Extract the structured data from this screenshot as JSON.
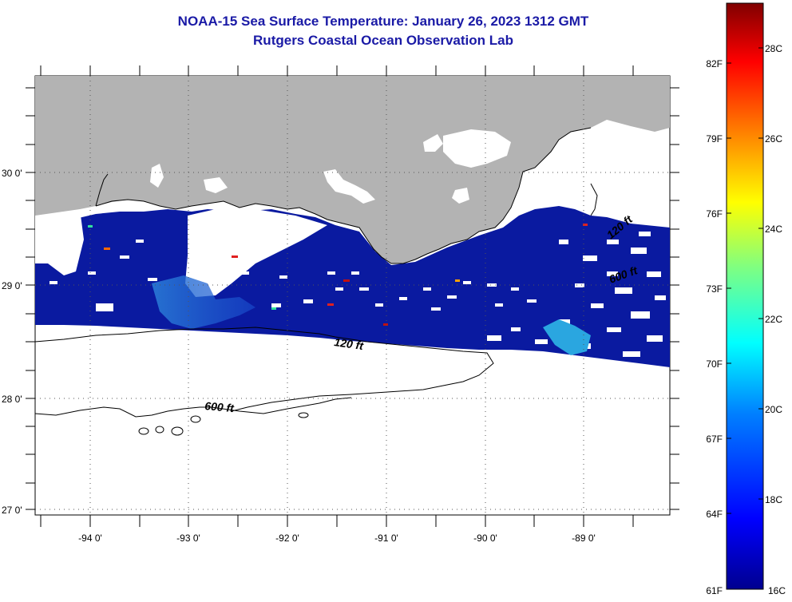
{
  "header": {
    "title_line1": "NOAA-15 Sea Surface Temperature:  January 26, 2023 1312 GMT",
    "title_line2": "Rutgers Coastal Ocean Observation Lab"
  },
  "map": {
    "longitude_labels": [
      "-94 0'",
      "-93 0'",
      "-92 0'",
      "-91 0'",
      "-90 0'",
      "-89 0'"
    ],
    "latitude_labels": [
      "30 0'",
      "29 0'",
      "28 0'",
      "27 0'"
    ],
    "contour_labels": [
      "120 ft",
      "600 ft",
      "120 ft",
      "600 ft"
    ],
    "colors": {
      "land": "#b3b3b3",
      "cloud_nodata": "#ffffff",
      "water_cold": "#0a1aa0"
    }
  },
  "colorbar": {
    "fahrenheit_labels": [
      "82F",
      "79F",
      "76F",
      "73F",
      "70F",
      "67F",
      "64F",
      "61F"
    ],
    "celsius_labels": [
      "28C",
      "26C",
      "24C",
      "22C",
      "20C",
      "18C",
      "16C"
    ],
    "color_stops": [
      "#00008f",
      "#0000ff",
      "#0080ff",
      "#00ffff",
      "#80ff80",
      "#ffff00",
      "#ff8000",
      "#ff0000",
      "#800000"
    ]
  }
}
